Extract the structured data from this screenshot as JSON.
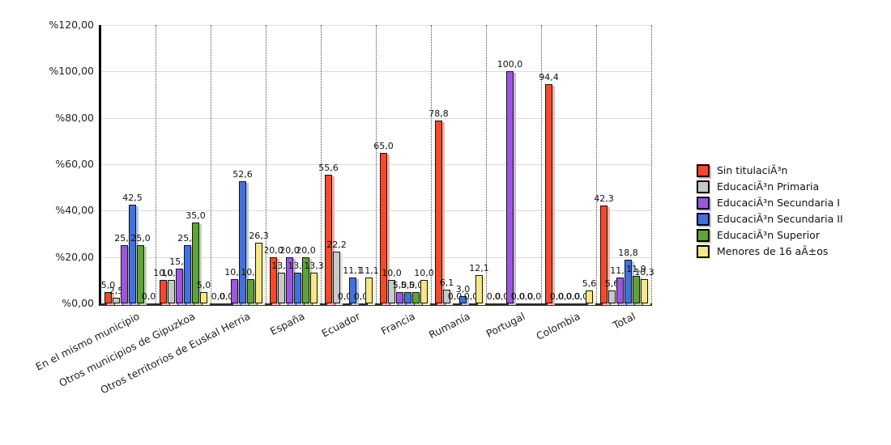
{
  "chart_data": {
    "type": "bar",
    "title": "",
    "xlabel": "",
    "ylabel": "",
    "grid": true,
    "legend_position": "right",
    "value_label_format": "comma-decimal-1",
    "y_axis": {
      "min": 0,
      "max": 120,
      "step": 20,
      "tick_labels": [
        "%0,00",
        "%20,00",
        "%40,00",
        "%60,00",
        "%80,00",
        "%100,00",
        "%120,00"
      ]
    },
    "categories": [
      "En el mismo municipio",
      "Otros municipios de Gipuzkoa",
      "Otros territorios de Euskal Herria",
      "España",
      "Ecuador",
      "Francia",
      "Rumanía",
      "Portugal",
      "Colombia",
      "Total"
    ],
    "series": [
      {
        "name": "Sin titulaciÃ³n",
        "color": "#EF4B2E",
        "shadow_color": "#F9AFA0",
        "values": [
          5.0,
          10.0,
          0.0,
          20.0,
          55.6,
          65.0,
          78.8,
          0.0,
          94.4,
          42.3
        ]
      },
      {
        "name": "EducaciÃ³n Primaria",
        "color": "#C9C9C9",
        "shadow_color": "#E7E7E7",
        "values": [
          2.5,
          10.0,
          0.0,
          13.3,
          22.2,
          10.0,
          6.1,
          0.0,
          0.0,
          5.6
        ]
      },
      {
        "name": "EducaciÃ³n Secundaria I",
        "color": "#9959D8",
        "shadow_color": "#CDB2EC",
        "values": [
          25.0,
          15.0,
          10.5,
          20.0,
          0.0,
          5.0,
          0.0,
          100.0,
          0.0,
          11.1
        ]
      },
      {
        "name": "EducaciÃ³n Secundaria II",
        "color": "#4371D9",
        "shadow_color": "#AFC5EF",
        "values": [
          42.5,
          25.0,
          52.6,
          13.3,
          11.1,
          5.0,
          3.0,
          0.0,
          0.0,
          18.8
        ]
      },
      {
        "name": "EducaciÃ³n Superior",
        "color": "#5FA23C",
        "shadow_color": "#BCD8AB",
        "values": [
          25.0,
          35.0,
          10.5,
          20.0,
          0.0,
          5.0,
          0.0,
          0.0,
          0.0,
          11.9
        ]
      },
      {
        "name": "Menores de 16 aÃ±os",
        "color": "#F3E78A",
        "shadow_color": "#FAF3C8",
        "values": [
          0.0,
          5.0,
          26.3,
          13.3,
          11.1,
          10.0,
          12.1,
          0.0,
          5.6,
          10.3
        ]
      }
    ]
  }
}
